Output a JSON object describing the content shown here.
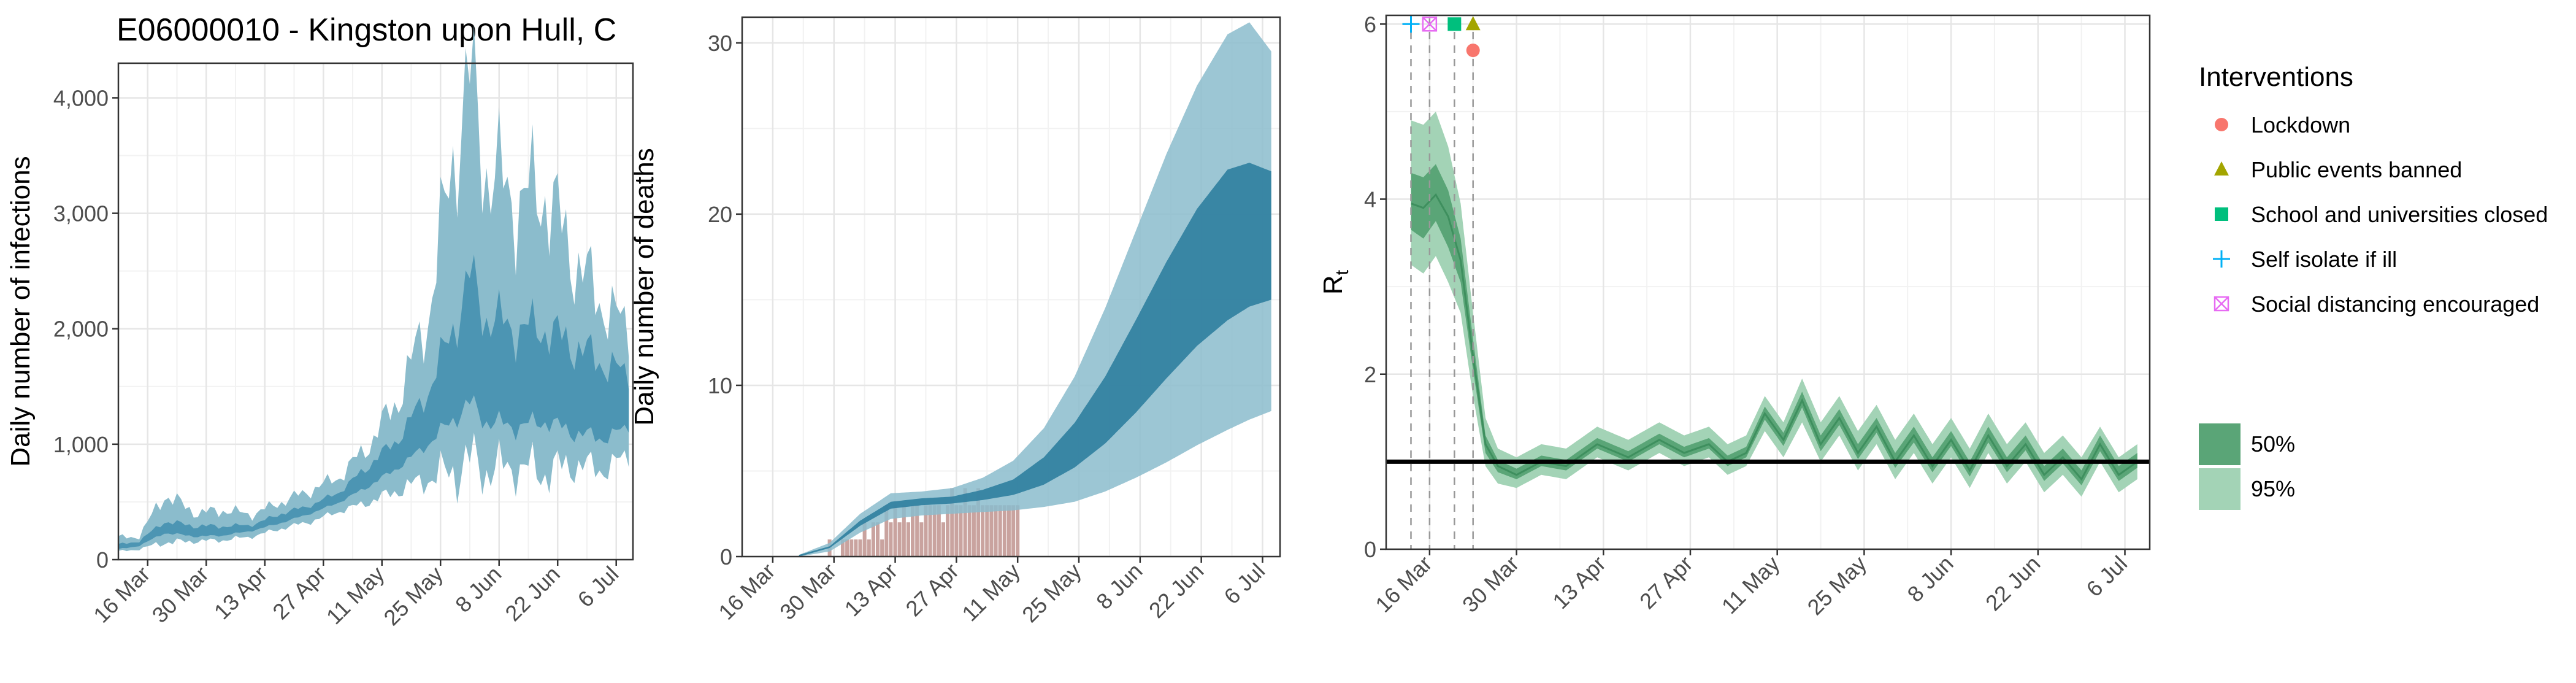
{
  "figure_title": "E06000010 - Kingston upon Hull, C",
  "colors": {
    "band_light": "#8bbccc",
    "band_dark": "#4c95b3",
    "band_darkest": "#2f7e9e",
    "bar": "#c9a39f",
    "rt_light": "#a3d3b6",
    "rt_dark": "#5aa577",
    "rt_line": "#3e8f5e",
    "lockdown": "#F8766D",
    "public_events": "#A3A500",
    "school": "#00BF7D",
    "self_isolate": "#00B0F6",
    "social_distancing": "#E76BF3"
  },
  "chart_data": [
    {
      "id": "infections",
      "type": "area",
      "title": "E06000010 - Kingston upon Hull, C",
      "xlabel": "",
      "ylabel": "Daily number of infections",
      "x_start": "2020-03-09",
      "x_end": "2020-07-10",
      "x_ticks": [
        "16 Mar",
        "30 Mar",
        "13 Apr",
        "27 Apr",
        "11 May",
        "25 May",
        "8 Jun",
        "22 Jun",
        "6 Jul"
      ],
      "ylim": [
        0,
        4300
      ],
      "y_ticks": [
        0,
        1000,
        2000,
        3000,
        4000
      ],
      "y_tick_labels": [
        "0",
        "1,000",
        "2,000",
        "3,000",
        "4,000"
      ],
      "grid": true,
      "series": [
        {
          "name": "95%",
          "x": [
            "2020-03-09",
            "2020-03-14",
            "2020-03-20",
            "2020-03-28",
            "2020-04-03",
            "2020-04-10",
            "2020-04-17",
            "2020-04-24",
            "2020-05-01",
            "2020-05-08",
            "2020-05-15",
            "2020-05-22",
            "2020-05-29",
            "2020-06-01",
            "2020-06-05",
            "2020-06-12",
            "2020-06-19",
            "2020-06-26",
            "2020-07-03",
            "2020-07-09"
          ],
          "lower": [
            70,
            90,
            150,
            160,
            170,
            200,
            270,
            330,
            420,
            500,
            600,
            700,
            780,
            850,
            780,
            800,
            760,
            820,
            780,
            900
          ],
          "upper": [
            190,
            200,
            560,
            400,
            430,
            390,
            500,
            600,
            720,
            1000,
            1400,
            2100,
            3700,
            4150,
            3400,
            3100,
            3200,
            2600,
            2200,
            2000
          ]
        },
        {
          "name": "50%",
          "x": [
            "2020-03-09",
            "2020-03-14",
            "2020-03-20",
            "2020-03-28",
            "2020-04-03",
            "2020-04-10",
            "2020-04-17",
            "2020-04-24",
            "2020-05-01",
            "2020-05-08",
            "2020-05-15",
            "2020-05-22",
            "2020-05-29",
            "2020-06-01",
            "2020-06-05",
            "2020-06-12",
            "2020-06-19",
            "2020-06-26",
            "2020-07-03",
            "2020-07-09"
          ],
          "lower": [
            90,
            120,
            230,
            200,
            210,
            250,
            320,
            400,
            500,
            640,
            800,
            1000,
            1250,
            1350,
            1200,
            1150,
            1200,
            1100,
            1050,
            1150
          ],
          "upper": [
            130,
            160,
            330,
            290,
            290,
            300,
            400,
            470,
            590,
            820,
            1050,
            1450,
            2100,
            2450,
            2100,
            2000,
            2000,
            1850,
            1700,
            1600
          ]
        }
      ]
    },
    {
      "id": "deaths",
      "type": "area",
      "title": "",
      "xlabel": "",
      "ylabel": "Daily number of deaths",
      "x_start": "2020-03-09",
      "x_end": "2020-07-10",
      "x_ticks": [
        "16 Mar",
        "30 Mar",
        "13 Apr",
        "27 Apr",
        "11 May",
        "25 May",
        "8 Jun",
        "22 Jun",
        "6 Jul"
      ],
      "ylim": [
        0,
        31.5
      ],
      "y_ticks": [
        0,
        10,
        20,
        30
      ],
      "y_tick_labels": [
        "0",
        "10",
        "20",
        "30"
      ],
      "grid": true,
      "series": [
        {
          "name": "95%",
          "x": [
            "2020-03-22",
            "2020-03-29",
            "2020-04-05",
            "2020-04-12",
            "2020-04-19",
            "2020-04-26",
            "2020-05-03",
            "2020-05-10",
            "2020-05-17",
            "2020-05-24",
            "2020-05-31",
            "2020-06-07",
            "2020-06-14",
            "2020-06-21",
            "2020-06-28",
            "2020-07-03",
            "2020-07-08"
          ],
          "lower": [
            0.0,
            0.3,
            1.4,
            2.2,
            2.4,
            2.5,
            2.6,
            2.7,
            2.9,
            3.2,
            3.8,
            4.6,
            5.5,
            6.5,
            7.4,
            8.0,
            8.5
          ],
          "upper": [
            0.1,
            0.8,
            2.5,
            3.7,
            3.8,
            4.0,
            4.6,
            5.6,
            7.5,
            10.5,
            14.5,
            19.0,
            23.5,
            27.5,
            30.5,
            31.2,
            29.5
          ]
        },
        {
          "name": "50%",
          "x": [
            "2020-03-22",
            "2020-03-29",
            "2020-04-05",
            "2020-04-12",
            "2020-04-19",
            "2020-04-26",
            "2020-05-03",
            "2020-05-10",
            "2020-05-17",
            "2020-05-24",
            "2020-05-31",
            "2020-06-07",
            "2020-06-14",
            "2020-06-21",
            "2020-06-28",
            "2020-07-03",
            "2020-07-08"
          ],
          "lower": [
            0.0,
            0.5,
            1.8,
            2.8,
            3.0,
            3.1,
            3.3,
            3.6,
            4.2,
            5.2,
            6.6,
            8.4,
            10.4,
            12.3,
            13.8,
            14.6,
            15.0
          ],
          "upper": [
            0.1,
            0.6,
            2.1,
            3.2,
            3.4,
            3.5,
            3.9,
            4.5,
            5.8,
            7.8,
            10.5,
            13.8,
            17.2,
            20.3,
            22.6,
            23.0,
            22.5
          ]
        }
      ],
      "bars": {
        "x_start": "2020-03-29",
        "values": [
          1,
          0,
          0,
          1,
          1,
          1,
          1,
          1,
          2,
          1,
          2,
          2,
          1,
          3,
          2,
          3,
          2,
          3,
          2,
          3,
          3,
          2,
          3,
          3,
          3,
          3,
          2,
          3,
          4,
          3,
          3,
          4,
          3,
          3,
          4,
          3,
          3,
          3,
          3,
          3,
          3,
          3,
          3,
          3
        ]
      }
    },
    {
      "id": "rt",
      "type": "line",
      "title": "",
      "xlabel": "",
      "ylabel": "R",
      "ylabel_subscript": "t",
      "x_start": "2020-03-09",
      "x_end": "2020-07-10",
      "x_ticks": [
        "16 Mar",
        "30 Mar",
        "13 Apr",
        "27 Apr",
        "11 May",
        "25 May",
        "8 Jun",
        "22 Jun",
        "6 Jul"
      ],
      "ylim": [
        0,
        6.1
      ],
      "y_ticks": [
        0,
        2,
        4,
        6
      ],
      "y_tick_labels": [
        "0",
        "2",
        "4",
        "6"
      ],
      "grid": true,
      "reference_line": 1,
      "series": [
        {
          "name": "Rt",
          "x": [
            "2020-03-13",
            "2020-03-15",
            "2020-03-17",
            "2020-03-19",
            "2020-03-21",
            "2020-03-23",
            "2020-03-25",
            "2020-03-27",
            "2020-03-30",
            "2020-04-03",
            "2020-04-07",
            "2020-04-12",
            "2020-04-17",
            "2020-04-22",
            "2020-04-26",
            "2020-04-30",
            "2020-05-03",
            "2020-05-06",
            "2020-05-09",
            "2020-05-12",
            "2020-05-15",
            "2020-05-18",
            "2020-05-21",
            "2020-05-24",
            "2020-05-27",
            "2020-05-30",
            "2020-06-02",
            "2020-06-05",
            "2020-06-08",
            "2020-06-11",
            "2020-06-14",
            "2020-06-17",
            "2020-06-20",
            "2020-06-23",
            "2020-06-26",
            "2020-06-29",
            "2020-07-02",
            "2020-07-05",
            "2020-07-08"
          ],
          "median": [
            3.95,
            3.9,
            4.05,
            3.8,
            3.3,
            2.2,
            1.2,
            0.95,
            0.85,
            1.0,
            0.95,
            1.2,
            1.05,
            1.25,
            1.1,
            1.2,
            1.0,
            1.1,
            1.55,
            1.25,
            1.7,
            1.2,
            1.5,
            1.1,
            1.4,
            1.0,
            1.3,
            0.95,
            1.25,
            0.9,
            1.3,
            0.95,
            1.2,
            0.85,
            1.05,
            0.8,
            1.2,
            0.85,
            1.0
          ],
          "lower95": [
            3.25,
            3.15,
            3.35,
            3.05,
            2.7,
            1.75,
            0.95,
            0.75,
            0.7,
            0.85,
            0.8,
            1.05,
            0.9,
            1.1,
            0.95,
            1.05,
            0.85,
            0.95,
            1.35,
            1.05,
            1.45,
            1.0,
            1.3,
            0.9,
            1.2,
            0.8,
            1.1,
            0.75,
            1.05,
            0.7,
            1.1,
            0.75,
            1.0,
            0.65,
            0.85,
            0.6,
            1.0,
            0.65,
            0.8
          ],
          "upper95": [
            4.9,
            4.85,
            5.0,
            4.6,
            3.95,
            2.7,
            1.5,
            1.15,
            1.05,
            1.2,
            1.15,
            1.4,
            1.25,
            1.45,
            1.3,
            1.4,
            1.2,
            1.3,
            1.75,
            1.45,
            1.95,
            1.45,
            1.75,
            1.35,
            1.65,
            1.25,
            1.55,
            1.2,
            1.5,
            1.15,
            1.55,
            1.2,
            1.45,
            1.1,
            1.3,
            1.05,
            1.4,
            1.05,
            1.2
          ],
          "lower50": [
            3.65,
            3.55,
            3.75,
            3.45,
            3.05,
            2.05,
            1.1,
            0.88,
            0.8,
            0.95,
            0.9,
            1.15,
            1.0,
            1.2,
            1.05,
            1.15,
            0.95,
            1.05,
            1.48,
            1.18,
            1.62,
            1.12,
            1.42,
            1.03,
            1.33,
            0.93,
            1.22,
            0.88,
            1.18,
            0.83,
            1.22,
            0.88,
            1.13,
            0.78,
            0.98,
            0.73,
            1.12,
            0.78,
            0.93
          ],
          "upper50": [
            4.3,
            4.25,
            4.4,
            4.1,
            3.55,
            2.4,
            1.3,
            1.02,
            0.92,
            1.07,
            1.02,
            1.27,
            1.12,
            1.32,
            1.17,
            1.27,
            1.07,
            1.17,
            1.63,
            1.33,
            1.8,
            1.3,
            1.6,
            1.2,
            1.5,
            1.1,
            1.4,
            1.05,
            1.35,
            1.0,
            1.4,
            1.05,
            1.3,
            0.95,
            1.15,
            0.9,
            1.3,
            0.95,
            1.1
          ]
        }
      ],
      "interventions": [
        {
          "name": "Self isolate if ill",
          "date": "2020-03-13",
          "y": 6.0
        },
        {
          "name": "Social distancing encouraged",
          "date": "2020-03-16",
          "y": 6.0
        },
        {
          "name": "School and universities closed",
          "date": "2020-03-20",
          "y": 6.0
        },
        {
          "name": "Public events banned",
          "date": "2020-03-23",
          "y": 6.0
        },
        {
          "name": "Lockdown",
          "date": "2020-03-23",
          "y": 5.7
        }
      ]
    }
  ],
  "legend": {
    "title": "Interventions",
    "items": [
      {
        "label": "Lockdown",
        "shape": "circle"
      },
      {
        "label": "Public events banned",
        "shape": "triangle"
      },
      {
        "label": "School and universities closed",
        "shape": "square"
      },
      {
        "label": "Self isolate if ill",
        "shape": "plus"
      },
      {
        "label": "Social distancing encouraged",
        "shape": "square-cross"
      }
    ],
    "intervals": [
      {
        "label": "50%"
      },
      {
        "label": "95%"
      }
    ]
  }
}
